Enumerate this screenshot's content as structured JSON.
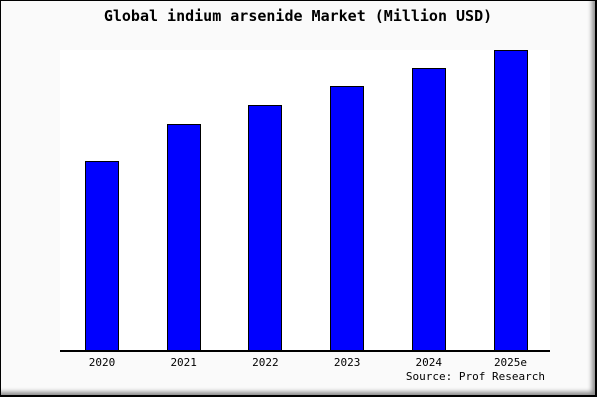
{
  "window": {
    "background_color": "#fafafa",
    "frame_border_color": "#000000",
    "plot_background_color": "#ffffff"
  },
  "chart_data": {
    "type": "bar",
    "title": "Global indium arsenide Market (Million USD)",
    "categories": [
      "2020",
      "2021",
      "2022",
      "2023",
      "2024",
      "2025e"
    ],
    "values": [
      63,
      75.3,
      81.7,
      88,
      94,
      100
    ],
    "values_note": "relative bar heights as % of tallest bar; chart displays no numeric y-axis, gridlines or data labels",
    "xlabel": "",
    "ylabel": "",
    "ylim": [
      0,
      100
    ],
    "grid": false,
    "legend": false,
    "bar_color": "#0000ff",
    "bar_border_color": "#000000",
    "source": "Source: Prof Research"
  }
}
